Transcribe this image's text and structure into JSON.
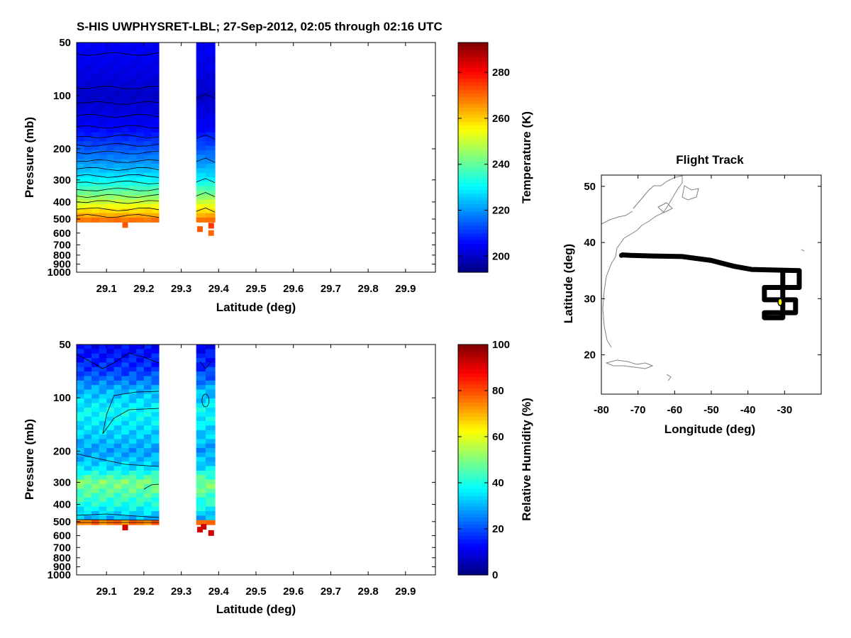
{
  "page_title": "S-HIS UWPHYSRET-LBL;   27-Sep-2012, 02:05 through 02:16 UTC",
  "colors": {
    "axis": "#000000",
    "background": "#ffffff",
    "track": "#000000",
    "current_position": "#ffff00",
    "coast": "#808080"
  },
  "colormap_stops": [
    "#00007f",
    "#0000ff",
    "#007fff",
    "#00ffff",
    "#7fff7f",
    "#ffff00",
    "#ff7f00",
    "#ff0000",
    "#7f0000"
  ],
  "chart_data": [
    {
      "id": "temperature",
      "type": "heatmap",
      "xlabel": "Latitude (deg)",
      "ylabel": "Pressure (mb)",
      "xlim": [
        29.02,
        29.98
      ],
      "ylim": [
        1000,
        50
      ],
      "yscale": "log",
      "x_ticks": [
        "29.1",
        "29.2",
        "29.3",
        "29.4",
        "29.5",
        "29.6",
        "29.7",
        "29.8",
        "29.9"
      ],
      "y_ticks": [
        "50",
        "100",
        "200",
        "300",
        "400",
        "500",
        "600",
        "700",
        "800",
        "900",
        "1000"
      ],
      "colorbar": {
        "label": "Temperature (K)",
        "min": 193,
        "max": 293,
        "ticks": [
          "200",
          "220",
          "240",
          "260",
          "280"
        ]
      },
      "data_columns": [
        {
          "lat_range": [
            29.02,
            29.24
          ],
          "bottom_mb": 520
        },
        {
          "lat_range": [
            29.34,
            29.39
          ],
          "bottom_mb": 520
        }
      ],
      "isolines_mb": [
        58,
        90,
        110,
        130,
        150,
        170,
        190,
        210,
        235,
        260,
        285,
        310,
        340,
        370,
        400,
        440,
        480
      ],
      "isoline_values": [
        205,
        203,
        200,
        198,
        200,
        205,
        210,
        215,
        220,
        225,
        230,
        235,
        240,
        245,
        250,
        255,
        260
      ],
      "isolines_right": [
        100,
        170,
        230,
        300,
        360,
        440
      ],
      "isolines_right_values": [
        200,
        207,
        218,
        228,
        240,
        254
      ],
      "profile": {
        "p_mb": [
          50,
          100,
          150,
          200,
          300,
          400,
          500,
          520
        ],
        "t_k": [
          205,
          200,
          205,
          214,
          230,
          250,
          268,
          272
        ]
      },
      "isolated_pixels": [
        {
          "lat": 29.15,
          "p_mb": 540,
          "t_k": 272
        },
        {
          "lat": 29.35,
          "p_mb": 570,
          "t_k": 272
        },
        {
          "lat": 29.38,
          "p_mb": 600,
          "t_k": 270
        },
        {
          "lat": 29.38,
          "p_mb": 545,
          "t_k": 275
        }
      ]
    },
    {
      "id": "relative_humidity",
      "type": "heatmap",
      "xlabel": "Latitude (deg)",
      "ylabel": "Pressure (mb)",
      "xlim": [
        29.02,
        29.98
      ],
      "ylim": [
        1000,
        50
      ],
      "yscale": "log",
      "x_ticks": [
        "29.1",
        "29.2",
        "29.3",
        "29.4",
        "29.5",
        "29.6",
        "29.7",
        "29.8",
        "29.9"
      ],
      "y_ticks": [
        "50",
        "100",
        "200",
        "300",
        "400",
        "500",
        "600",
        "700",
        "800",
        "900",
        "1000"
      ],
      "colorbar": {
        "label": "Relative Humidity (%)",
        "min": 0,
        "max": 100,
        "ticks": [
          "0",
          "20",
          "40",
          "60",
          "80",
          "100"
        ]
      },
      "data_columns": [
        {
          "lat_range": [
            29.02,
            29.24
          ],
          "bottom_mb": 520
        },
        {
          "lat_range": [
            29.34,
            29.39
          ],
          "bottom_mb": 520
        }
      ],
      "profile": {
        "p_mb": [
          50,
          70,
          90,
          120,
          200,
          250,
          300,
          400,
          480,
          510,
          520
        ],
        "rh_pct": [
          12,
          18,
          30,
          38,
          28,
          35,
          50,
          40,
          30,
          85,
          95
        ]
      },
      "isolated_pixels": [
        {
          "lat": 29.15,
          "p_mb": 540,
          "rh_pct": 92
        },
        {
          "lat": 29.35,
          "p_mb": 555,
          "rh_pct": 92
        },
        {
          "lat": 29.38,
          "p_mb": 580,
          "rh_pct": 92
        },
        {
          "lat": 29.36,
          "p_mb": 535,
          "rh_pct": 92
        }
      ]
    },
    {
      "id": "flight_track",
      "type": "line",
      "title": "Flight Track",
      "xlabel": "Longitude (deg)",
      "ylabel": "Latitude (deg)",
      "xlim": [
        -80,
        -20
      ],
      "ylim": [
        13,
        52
      ],
      "x_ticks": [
        "-80",
        "-70",
        "-60",
        "-50",
        "-40",
        "-30"
      ],
      "y_ticks": [
        "20",
        "30",
        "40",
        "50"
      ],
      "track": [
        {
          "lon": -74.5,
          "lat": 37.8
        },
        {
          "lon": -72,
          "lat": 37.7
        },
        {
          "lon": -66,
          "lat": 37.6
        },
        {
          "lon": -58,
          "lat": 37.5
        },
        {
          "lon": -50,
          "lat": 36.8
        },
        {
          "lon": -44,
          "lat": 35.8
        },
        {
          "lon": -39,
          "lat": 35.2
        },
        {
          "lon": -26,
          "lat": 35.0
        },
        {
          "lon": -26,
          "lat": 32.0
        },
        {
          "lon": -35.5,
          "lat": 32.0
        },
        {
          "lon": -35.5,
          "lat": 29.8
        },
        {
          "lon": -27,
          "lat": 29.8
        },
        {
          "lon": -27,
          "lat": 27.5
        },
        {
          "lon": -35.5,
          "lat": 27.5
        },
        {
          "lon": -35.5,
          "lat": 26.6
        },
        {
          "lon": -30.5,
          "lat": 26.6
        },
        {
          "lon": -30.5,
          "lat": 35.0
        }
      ],
      "start_marker": {
        "lon": -74.5,
        "lat": 37.7
      },
      "current_position": {
        "lon": -31.2,
        "lat": 29.4
      }
    }
  ]
}
